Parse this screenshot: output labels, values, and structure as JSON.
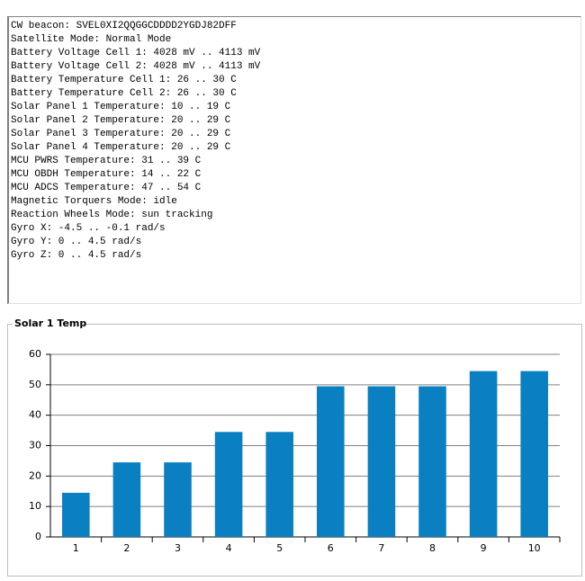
{
  "text_box": {
    "lines": [
      "CW beacon: SVEL0XI2QQGGCDDDD2YGDJ82DFF",
      "Satellite Mode: Normal Mode",
      "Battery Voltage Cell 1: 4028 mV .. 4113 mV",
      "Battery Voltage Cell 2: 4028 mV .. 4113 mV",
      "Battery Temperature Cell 1: 26 .. 30 C",
      "Battery Temperature Cell 2: 26 .. 30 C",
      "Solar Panel 1 Temperature: 10 .. 19 C",
      "Solar Panel 2 Temperature: 20 .. 29 C",
      "Solar Panel 3 Temperature: 20 .. 29 C",
      "Solar Panel 4 Temperature: 20 .. 29 C",
      "MCU PWRS Temperature: 31 .. 39 C",
      "MCU OBDH Temperature: 14 .. 22 C",
      "MCU ADCS Temperature: 47 .. 54 C",
      "Magnetic Torquers Mode: idle",
      "Reaction Wheels Mode: sun tracking",
      "Gyro X: -4.5 .. -0.1 rad/s",
      "Gyro Y: 0 .. 4.5 rad/s",
      "Gyro Z: 0 .. 4.5 rad/s"
    ]
  },
  "chart_data": {
    "type": "bar",
    "title": "Solar 1 Temp",
    "categories": [
      "1",
      "2",
      "3",
      "4",
      "5",
      "6",
      "7",
      "8",
      "9",
      "10"
    ],
    "values": [
      14.5,
      24.5,
      24.5,
      34.5,
      34.5,
      49.5,
      49.5,
      49.5,
      54.5,
      54.5
    ],
    "color": "#0a7fc1",
    "ylim": [
      0,
      60
    ],
    "yticks": [
      0,
      10,
      20,
      30,
      40,
      50,
      60
    ],
    "grid": true
  }
}
